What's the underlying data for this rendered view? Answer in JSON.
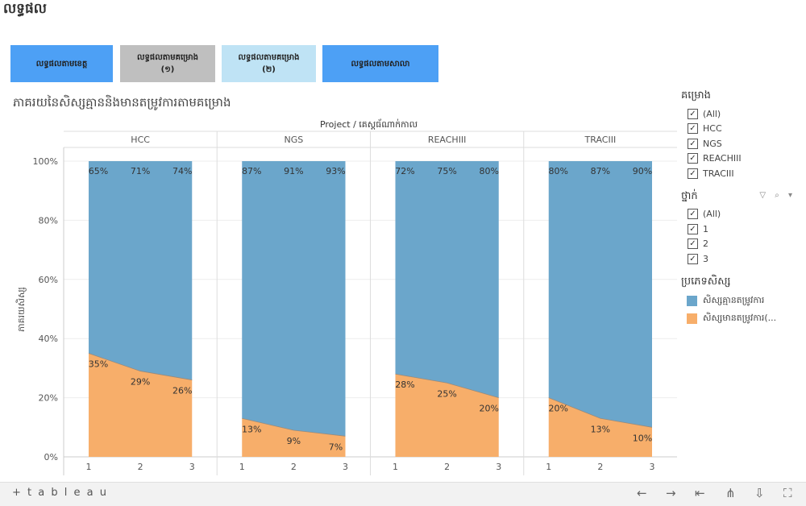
{
  "page": {
    "title": "លទ្ធផល"
  },
  "tabs": [
    {
      "label": "លទ្ធផលតាមខេត្ត"
    },
    {
      "label": "លទ្ធផលតាមគម្រោង\n(១)"
    },
    {
      "label": "លទ្ធផលតាមគម្រោង\n(២)"
    },
    {
      "label": "លទ្ធផលតាមសាលា"
    }
  ],
  "viz_title": "ភាគរយនៃសិស្សគ្មាននិងមានតម្រូវការតាមគម្រោង",
  "chart_data": {
    "type": "area",
    "column_header": "Project / គេស្តធ័ណាក់កាល",
    "ylabel": "ភាគរយសិស្ស",
    "ylim": [
      0,
      100
    ],
    "y_ticks": [
      "0%",
      "20%",
      "40%",
      "60%",
      "80%",
      "100%"
    ],
    "x_ticks": [
      "1",
      "2",
      "3"
    ],
    "panels": [
      {
        "name": "HCC",
        "series": [
          {
            "name": "សិស្សគ្មានតម្រូវការ",
            "values": [
              65,
              71,
              74
            ],
            "labels": [
              "65%",
              "71%",
              "74%"
            ]
          },
          {
            "name": "សិស្សមានតម្រូវការ(...",
            "values": [
              35,
              29,
              26
            ],
            "labels": [
              "35%",
              "29%",
              "26%"
            ]
          }
        ]
      },
      {
        "name": "NGS",
        "series": [
          {
            "name": "សិស្សគ្មានតម្រូវការ",
            "values": [
              87,
              91,
              93
            ],
            "labels": [
              "87%",
              "91%",
              "93%"
            ]
          },
          {
            "name": "សិស្សមានតម្រូវការ(...",
            "values": [
              13,
              9,
              7
            ],
            "labels": [
              "13%",
              "9%",
              "7%"
            ]
          }
        ]
      },
      {
        "name": "REACHIII",
        "series": [
          {
            "name": "សិស្សគ្មានតម្រូវការ",
            "values": [
              72,
              75,
              80
            ],
            "labels": [
              "72%",
              "75%",
              "80%"
            ]
          },
          {
            "name": "សិស្សមានតម្រូវការ(...",
            "values": [
              28,
              25,
              20
            ],
            "labels": [
              "28%",
              "25%",
              "20%"
            ]
          }
        ]
      },
      {
        "name": "TRACIII",
        "series": [
          {
            "name": "សិស្សគ្មានតម្រូវការ",
            "values": [
              80,
              87,
              90
            ],
            "labels": [
              "80%",
              "87%",
              "90%"
            ]
          },
          {
            "name": "សិស្សមានតម្រូវការ(...",
            "values": [
              20,
              13,
              10
            ],
            "labels": [
              "20%",
              "13%",
              "10%"
            ]
          }
        ]
      }
    ],
    "colors": {
      "no_need": "#6ba6cb",
      "has_need": "#f7ae6a"
    },
    "grid": true
  },
  "filters": {
    "project": {
      "title": "គម្រោង",
      "items": [
        "(All)",
        "HCC",
        "NGS",
        "REACHIII",
        "TRACIII"
      ]
    },
    "grade": {
      "title": "ថ្នាក់",
      "tools": "▽ ⌕ ▾",
      "items": [
        "(All)",
        "1",
        "2",
        "3"
      ]
    },
    "student_type": {
      "title": "ប្រភេទសិស្ស",
      "items": [
        {
          "label": "សិស្សគ្មានតម្រូវការ",
          "color": "#6ba6cb"
        },
        {
          "label": "សិស្សមានតម្រូវការ(...",
          "color": "#f7ae6a"
        }
      ]
    }
  },
  "toolbar": {
    "logo": "+ t a b l e a u",
    "icons": [
      "undo-icon",
      "redo-icon",
      "revert-icon",
      "share-icon",
      "download-icon",
      "fullscreen-icon"
    ],
    "glyphs": [
      "←",
      "→",
      "⇤",
      "⋔",
      "⇩",
      "⛶"
    ]
  }
}
